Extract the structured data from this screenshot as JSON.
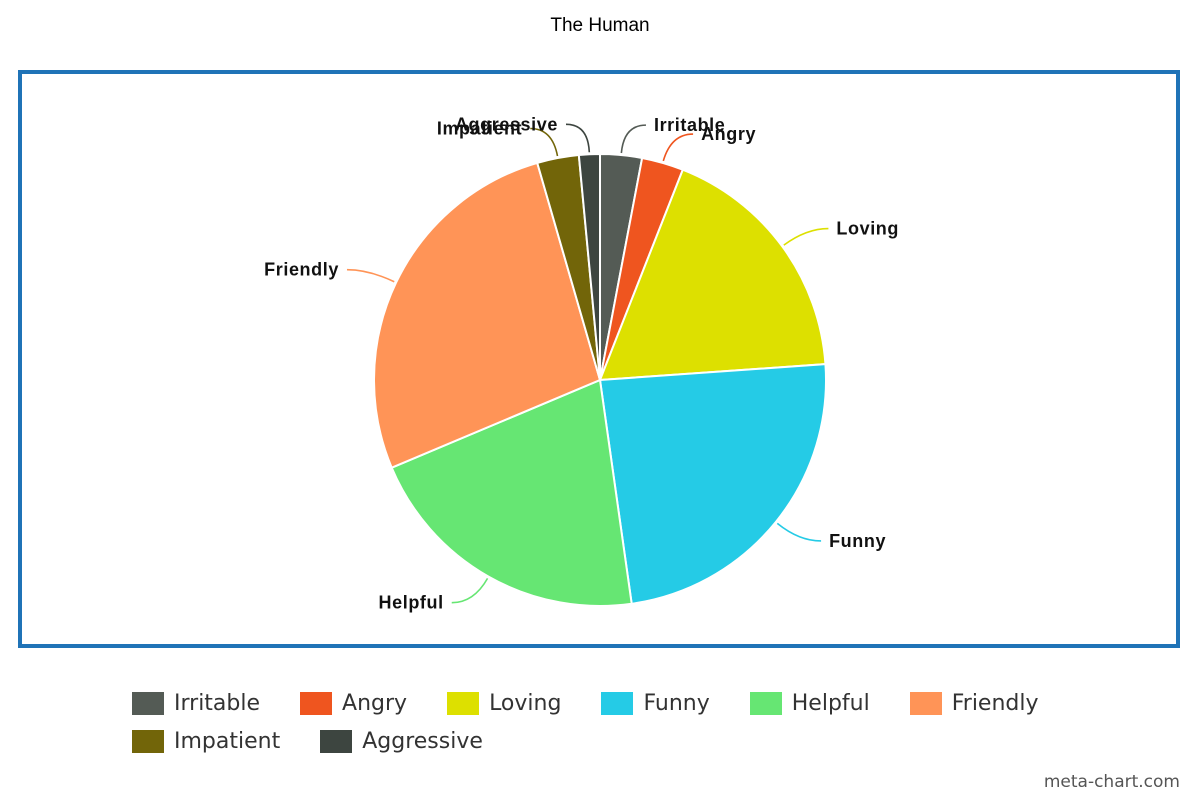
{
  "chart_data": {
    "type": "pie",
    "title": "The Human",
    "start_angle_deg": 0,
    "direction": "clockwise",
    "slices": [
      {
        "label": "Irritable",
        "value": 3,
        "color": "#545b55"
      },
      {
        "label": "Angry",
        "value": 3,
        "color": "#ef551f"
      },
      {
        "label": "Loving",
        "value": 18,
        "color": "#dde000"
      },
      {
        "label": "Funny",
        "value": 24,
        "color": "#25cbe6"
      },
      {
        "label": "Helpful",
        "value": 21,
        "color": "#66e673"
      },
      {
        "label": "Friendly",
        "value": 27,
        "color": "#ff9457"
      },
      {
        "label": "Impatient",
        "value": 3,
        "color": "#726509"
      },
      {
        "label": "Aggressive",
        "value": 1.5,
        "color": "#3d4540"
      }
    ],
    "legend_position": "bottom"
  },
  "frame_color": "#1f73b7",
  "credit": "meta-chart.com"
}
